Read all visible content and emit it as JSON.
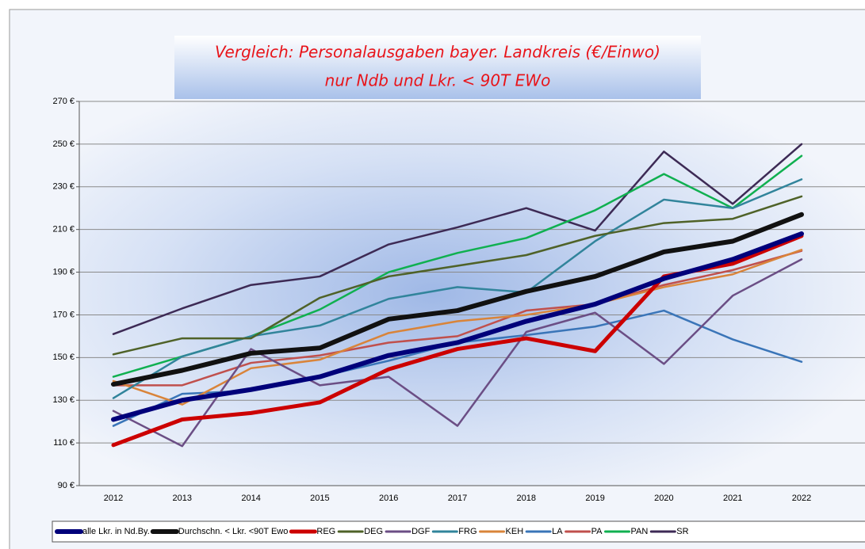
{
  "chart_data": {
    "type": "line",
    "title": [
      "Vergleich: Personalausgaben bayer. Landkreis (€/Einwo)",
      "nur Ndb und Lkr. < 90T EWo"
    ],
    "categories": [
      "2012",
      "2013",
      "2014",
      "2015",
      "2016",
      "2017",
      "2018",
      "2019",
      "2020",
      "2021",
      "2022"
    ],
    "ylim": [
      90,
      270
    ],
    "yticks": [
      {
        "value": 90,
        "label": "90 €"
      },
      {
        "value": 110,
        "label": "110 €"
      },
      {
        "value": 130,
        "label": "130 €"
      },
      {
        "value": 150,
        "label": "150 €"
      },
      {
        "value": 170,
        "label": "170 €"
      },
      {
        "value": 190,
        "label": "190 €"
      },
      {
        "value": 210,
        "label": "210 €"
      },
      {
        "value": 230,
        "label": "230 €"
      },
      {
        "value": 250,
        "label": "250 €"
      },
      {
        "value": 270,
        "label": "270 €"
      }
    ],
    "grid": true,
    "legend": "bottom",
    "series": [
      {
        "name": "alle Lkr. in Nd.By.",
        "color": "#00007a",
        "width": 6,
        "values": [
          121,
          130,
          135,
          141,
          151,
          157,
          167,
          175,
          187,
          196,
          208
        ]
      },
      {
        "name": "Durchschn. < Lkr. <90T Ewo",
        "color": "#111111",
        "width": 6,
        "values": [
          137.5,
          144,
          152,
          154.5,
          168,
          172,
          181,
          188,
          199.5,
          204.5,
          217
        ]
      },
      {
        "name": "REG",
        "color": "#cc0000",
        "width": 5,
        "values": [
          109,
          121,
          124,
          129,
          144.5,
          154,
          159,
          153,
          188,
          194,
          207
        ]
      },
      {
        "name": "DEG",
        "color": "#4f6228",
        "width": 2.5,
        "values": [
          151.5,
          159,
          159,
          178,
          188,
          193,
          198,
          207,
          213,
          215,
          225.5
        ]
      },
      {
        "name": "DGF",
        "color": "#6b4e85",
        "width": 2.5,
        "values": [
          125,
          108.5,
          154,
          137,
          141,
          118,
          162,
          171,
          147,
          179,
          196
        ]
      },
      {
        "name": "FRG",
        "color": "#31849b",
        "width": 2.5,
        "values": [
          131,
          150.5,
          160,
          165,
          177.5,
          183,
          180.5,
          204.5,
          224,
          220,
          233.5
        ]
      },
      {
        "name": "KEH",
        "color": "#d9843a",
        "width": 2.5,
        "values": [
          139,
          128,
          145,
          149,
          161.5,
          167,
          170,
          175,
          183,
          189,
          200.5
        ]
      },
      {
        "name": "LA",
        "color": "#3a75b8",
        "width": 2.5,
        "values": [
          118,
          133,
          134.5,
          141,
          148.5,
          157,
          160.5,
          164.5,
          172,
          158.5,
          148
        ]
      },
      {
        "name": "PA",
        "color": "#c0504d",
        "width": 2.5,
        "values": [
          137,
          137,
          147.5,
          151,
          157,
          160,
          172,
          175,
          184,
          191,
          200
        ]
      },
      {
        "name": "PAN",
        "color": "#10b050",
        "width": 2.5,
        "values": [
          141,
          150.5,
          160,
          172.5,
          190,
          199,
          206,
          219,
          236,
          220,
          244.5
        ]
      },
      {
        "name": "SR",
        "color": "#3d2a55",
        "width": 2.5,
        "values": [
          161,
          173,
          184,
          188,
          203,
          211,
          220,
          209.5,
          246.5,
          222,
          250
        ]
      }
    ]
  }
}
